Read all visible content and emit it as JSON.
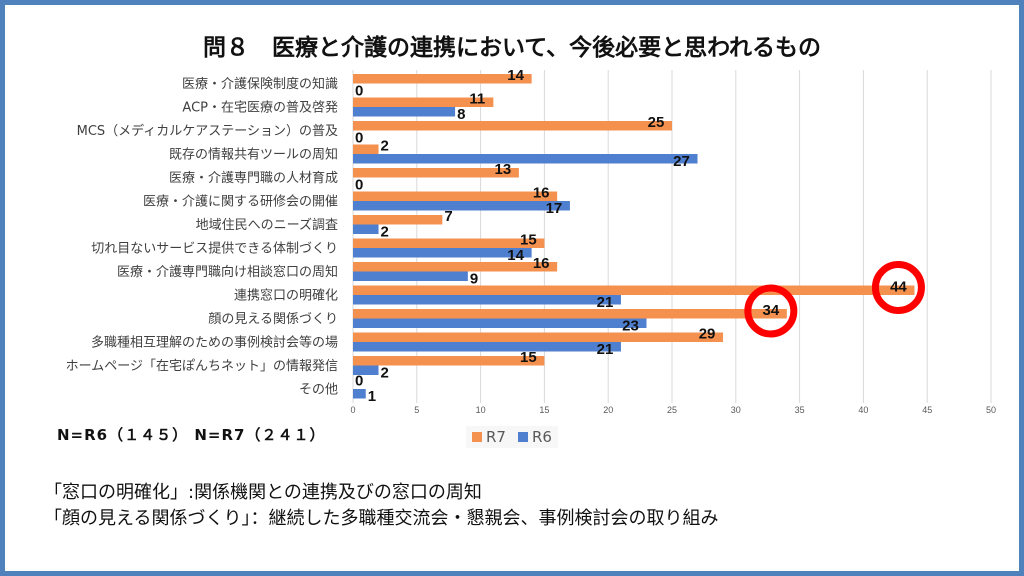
{
  "title": "問８　医療と介護の連携において、今後必要と思われるもの",
  "n_label_r6": "N=R6（１４５）",
  "n_label_r7": "N=R7（２４１）",
  "notes": [
    "「窓口の明確化」:関係機関との連携及びの窓口の周知",
    "「顔の見える関係づくり」：継続した多職種交流会・懇親会、事例検討会の取り組み"
  ],
  "chart_data": {
    "type": "bar",
    "orientation": "horizontal",
    "title": "問８　医療と介護の連携において、今後必要と思われるもの",
    "categories": [
      "医療・介護保険制度の知識",
      "ACP・在宅医療の普及啓発",
      "MCS（メディカルケアステーション）の普及",
      "既存の情報共有ツールの周知",
      "医療・介護専門職の人材育成",
      "医療・介護に関する研修会の開催",
      "地域住民へのニーズ調査",
      "切れ目ないサービス提供できる体制づくり",
      "医療・介護専門職向け相談窓口の周知",
      "連携窓口の明確化",
      "顔の見える関係づくり",
      "多職種相互理解のための事例検討会等の場",
      "ホームページ「在宅ぽんちネット」の情報発信",
      "その他"
    ],
    "series": [
      {
        "name": "R7",
        "color": "#f4914f",
        "values": [
          14,
          11,
          25,
          2,
          13,
          16,
          7,
          15,
          16,
          44,
          34,
          29,
          15,
          0
        ]
      },
      {
        "name": "R6",
        "color": "#4f7fcf",
        "values": [
          0,
          8,
          0,
          27,
          0,
          17,
          2,
          14,
          9,
          21,
          23,
          21,
          2,
          1
        ]
      }
    ],
    "xlim": [
      0,
      50
    ],
    "xticks": [
      0,
      5,
      10,
      15,
      20,
      25,
      30,
      35,
      40,
      45,
      50
    ],
    "grid": true,
    "legend": "bottom",
    "highlighted": [
      {
        "series": "R7",
        "category": "連携窓口の明確化"
      },
      {
        "series": "R7",
        "category": "顔の見える関係づくり"
      }
    ],
    "highlight_color": "#ff0000"
  }
}
